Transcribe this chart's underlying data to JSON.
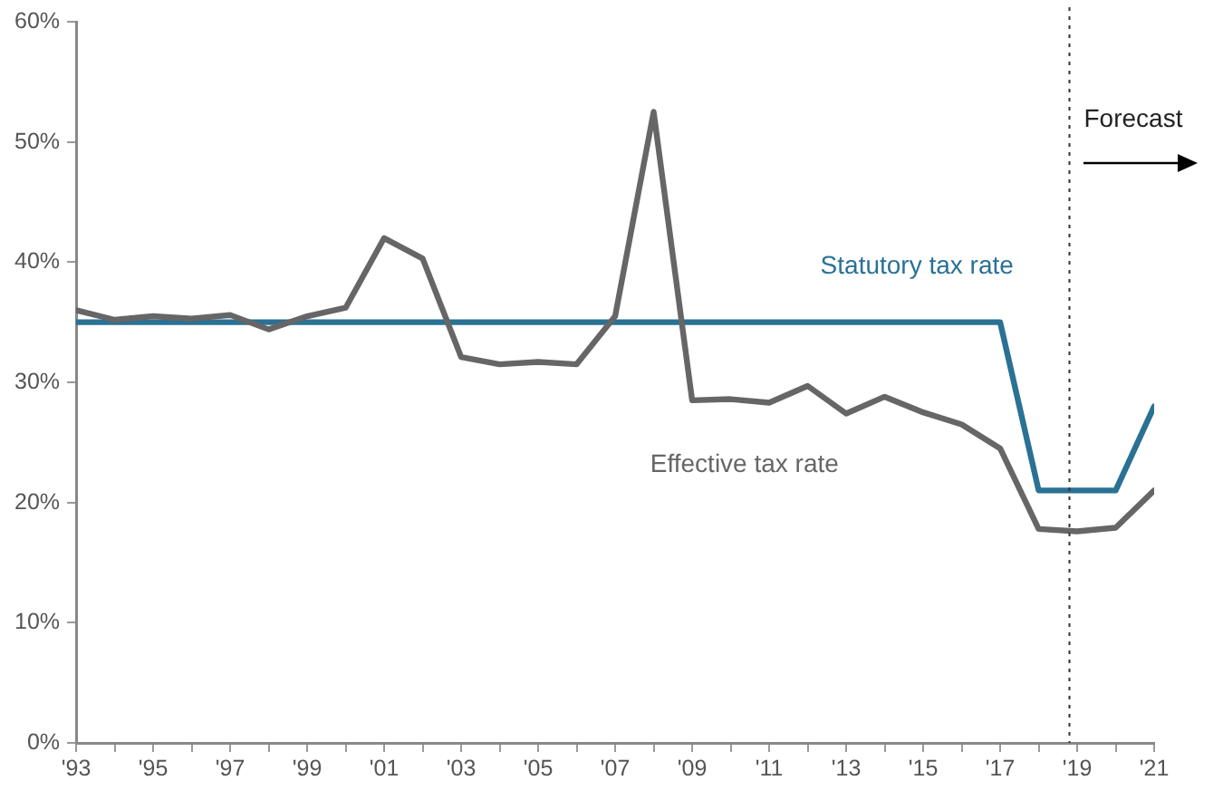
{
  "chart_data": {
    "type": "line",
    "x": [
      1993,
      1994,
      1995,
      1996,
      1997,
      1998,
      1999,
      2000,
      2001,
      2002,
      2003,
      2004,
      2005,
      2006,
      2007,
      2008,
      2009,
      2010,
      2011,
      2012,
      2013,
      2014,
      2015,
      2016,
      2017,
      2018,
      2019,
      2020,
      2021
    ],
    "series": [
      {
        "name": "Effective tax rate",
        "color": "#666666",
        "values": [
          36,
          35.2,
          35.5,
          35.3,
          35.6,
          34.4,
          35.5,
          36.2,
          42,
          40.3,
          32.1,
          31.5,
          31.7,
          31.5,
          35.5,
          52.5,
          28.5,
          28.6,
          28.3,
          29.7,
          27.4,
          28.8,
          27.5,
          26.5,
          24.5,
          17.8,
          17.6,
          17.9,
          21
        ]
      },
      {
        "name": "Statutory tax rate",
        "color": "#2a7194",
        "values": [
          35,
          35,
          35,
          35,
          35,
          35,
          35,
          35,
          35,
          35,
          35,
          35,
          35,
          35,
          35,
          35,
          35,
          35,
          35,
          35,
          35,
          35,
          35,
          35,
          35,
          21,
          21,
          21,
          28
        ]
      }
    ],
    "xlim": [
      1993,
      2021
    ],
    "xticks": [
      {
        "value": 1993,
        "label": "'93"
      },
      {
        "value": 1994,
        "label": null
      },
      {
        "value": 1995,
        "label": "'95"
      },
      {
        "value": 1996,
        "label": null
      },
      {
        "value": 1997,
        "label": "'97"
      },
      {
        "value": 1998,
        "label": null
      },
      {
        "value": 1999,
        "label": "'99"
      },
      {
        "value": 2000,
        "label": null
      },
      {
        "value": 2001,
        "label": "'01"
      },
      {
        "value": 2002,
        "label": null
      },
      {
        "value": 2003,
        "label": "'03"
      },
      {
        "value": 2004,
        "label": null
      },
      {
        "value": 2005,
        "label": "'05"
      },
      {
        "value": 2006,
        "label": null
      },
      {
        "value": 2007,
        "label": "'07"
      },
      {
        "value": 2008,
        "label": null
      },
      {
        "value": 2009,
        "label": "'09"
      },
      {
        "value": 2010,
        "label": null
      },
      {
        "value": 2011,
        "label": "'11"
      },
      {
        "value": 2012,
        "label": null
      },
      {
        "value": 2013,
        "label": "'13"
      },
      {
        "value": 2014,
        "label": null
      },
      {
        "value": 2015,
        "label": "'15"
      },
      {
        "value": 2016,
        "label": null
      },
      {
        "value": 2017,
        "label": "'17"
      },
      {
        "value": 2018,
        "label": null
      },
      {
        "value": 2019,
        "label": "'19"
      },
      {
        "value": 2020,
        "label": null
      },
      {
        "value": 2021,
        "label": "'21"
      }
    ],
    "ylim": [
      0,
      60
    ],
    "yticks": [
      {
        "value": 0,
        "label": "0%"
      },
      {
        "value": 10,
        "label": "10%"
      },
      {
        "value": 20,
        "label": "20%"
      },
      {
        "value": 30,
        "label": "30%"
      },
      {
        "value": 40,
        "label": "40%"
      },
      {
        "value": 50,
        "label": "50%"
      },
      {
        "value": 60,
        "label": "60%"
      }
    ],
    "ref_lines": [
      {
        "axis": "x",
        "value": 2018.8,
        "label": "Forecast",
        "color": "#333333",
        "line_style": "dotted"
      }
    ],
    "grid": false,
    "legend": false,
    "marker": "none",
    "line_style": "solid"
  }
}
